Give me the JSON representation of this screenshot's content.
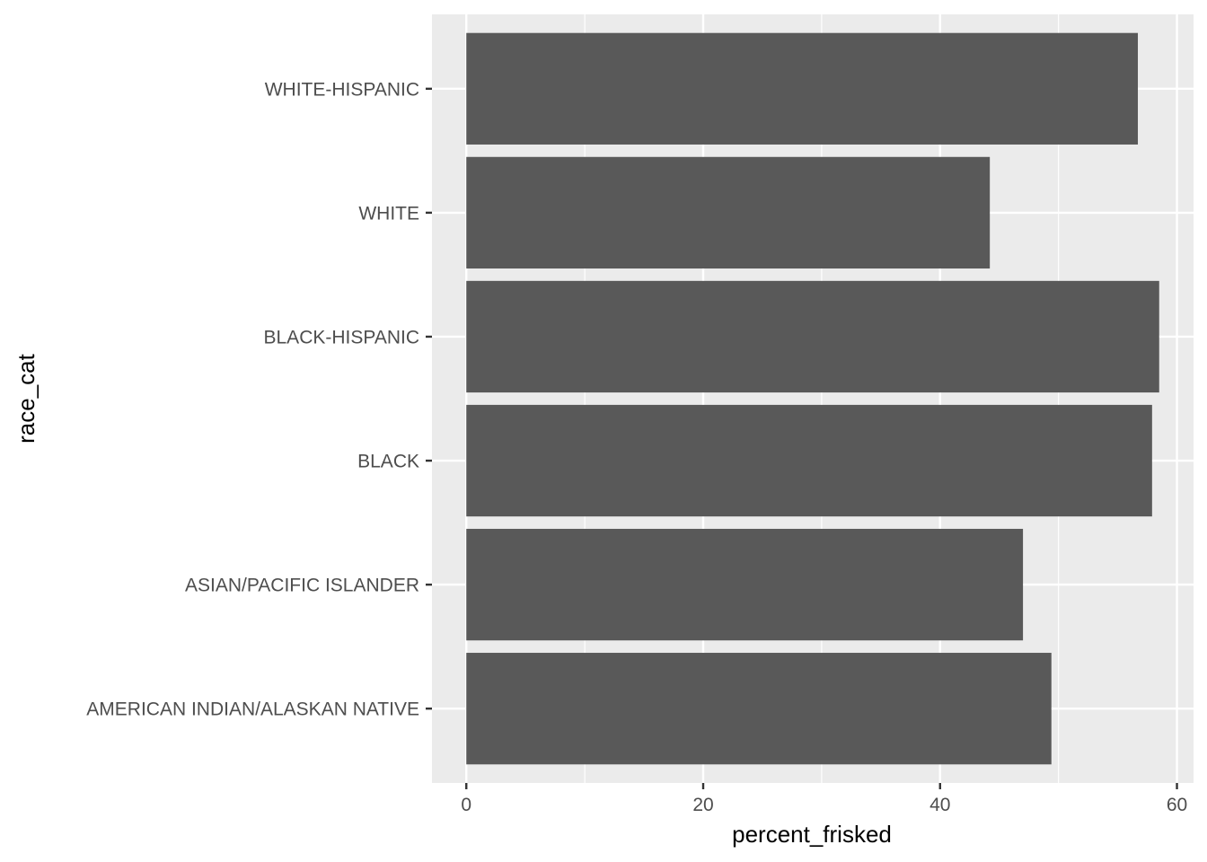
{
  "chart_data": {
    "type": "bar",
    "orientation": "horizontal",
    "categories": [
      "AMERICAN INDIAN/ALASKAN NATIVE",
      "ASIAN/PACIFIC ISLANDER",
      "BLACK",
      "BLACK-HISPANIC",
      "WHITE",
      "WHITE-HISPANIC"
    ],
    "values": [
      49.4,
      47.0,
      57.9,
      58.5,
      44.2,
      56.7
    ],
    "title": "",
    "xlabel": "percent_frisked",
    "ylabel": "race_cat",
    "xlim": [
      -2.9,
      61.4
    ],
    "xticks": [
      0,
      20,
      40,
      60
    ],
    "x_minor_gridlines": [
      10,
      30,
      50
    ],
    "grid": true,
    "legend": "none",
    "colors": {
      "panel_background": "#ebebeb",
      "gridline": "#ffffff",
      "bar_fill": "#595959",
      "tick_text": "#4d4d4d",
      "tick_mark": "#333333",
      "axis_title": "#000000"
    }
  }
}
